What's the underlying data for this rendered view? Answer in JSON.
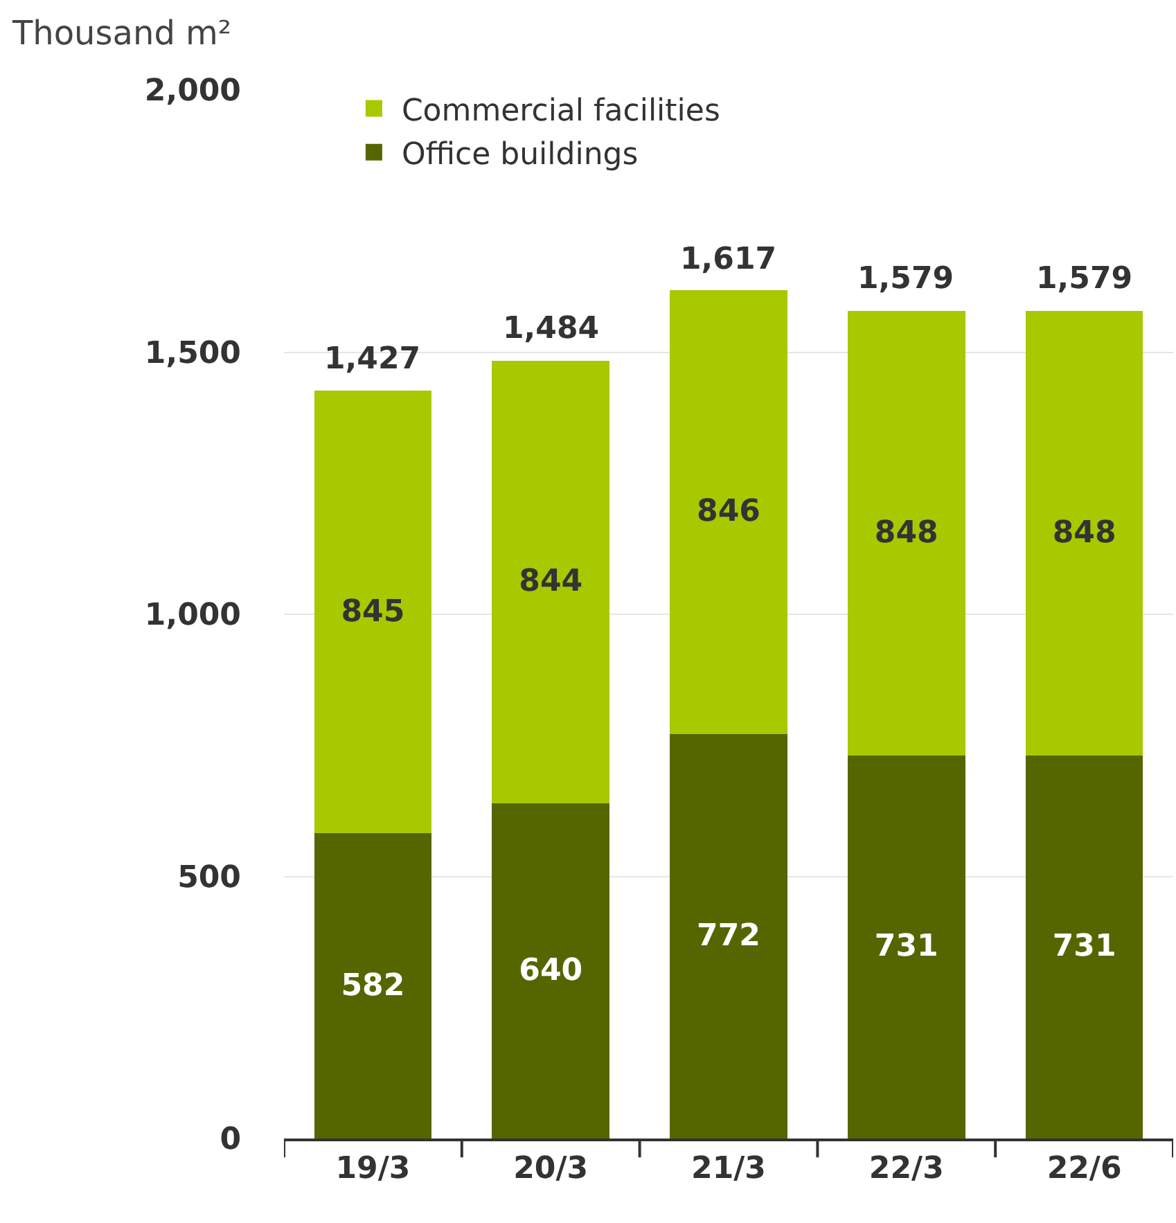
{
  "chart_data": {
    "type": "bar",
    "stacked": true,
    "ylabel": "Thousand m²",
    "categories": [
      "19/3",
      "20/3",
      "21/3",
      "22/3",
      "22/6"
    ],
    "series": [
      {
        "name": "Office buildings",
        "color": "#556600",
        "values": [
          582,
          640,
          772,
          731,
          731
        ]
      },
      {
        "name": "Commercial facilities",
        "color": "#a8c800",
        "values": [
          845,
          844,
          846,
          848,
          848
        ]
      }
    ],
    "totals": [
      "1,427",
      "1,484",
      "1,617",
      "1,579",
      "1,579"
    ],
    "data_labels": true,
    "ylim": [
      0,
      2000
    ],
    "yticks": [
      0,
      500,
      {
        "value": 1000,
        "label": "1,000"
      },
      {
        "value": 1500,
        "label": "1,500"
      },
      {
        "value": 2000,
        "label": "2,000"
      }
    ],
    "grid": "y",
    "legend": "top left"
  }
}
